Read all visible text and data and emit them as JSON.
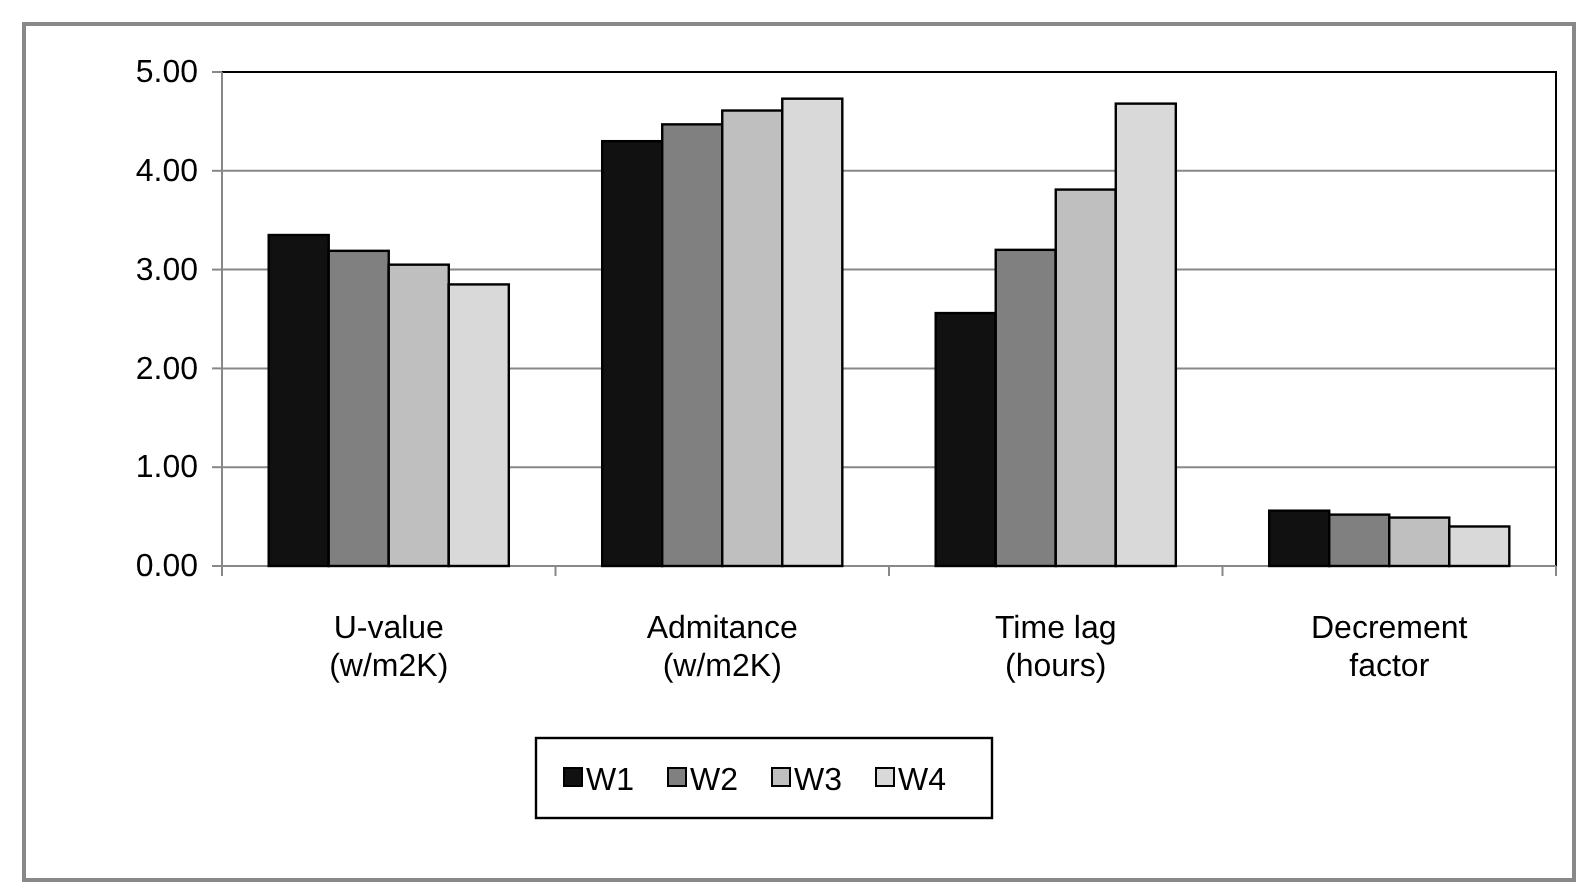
{
  "chart_data": {
    "type": "bar",
    "categories": [
      "U-value (w/m2K)",
      "Admitance (w/m2K)",
      "Time lag (hours)",
      "Decrement factor"
    ],
    "series": [
      {
        "name": "W1",
        "color": "#111111",
        "values": [
          3.35,
          4.3,
          2.56,
          0.56
        ]
      },
      {
        "name": "W2",
        "color": "#808080",
        "values": [
          3.19,
          4.47,
          3.2,
          0.52
        ]
      },
      {
        "name": "W3",
        "color": "#bfbfbf",
        "values": [
          3.05,
          4.61,
          3.81,
          0.49
        ]
      },
      {
        "name": "W4",
        "color": "#d9d9d9",
        "values": [
          2.85,
          4.73,
          4.68,
          0.4
        ]
      }
    ],
    "ylim": [
      0,
      5
    ],
    "yticks": [
      {
        "value": 0,
        "label": "0.00"
      },
      {
        "value": 1,
        "label": "1.00"
      },
      {
        "value": 2,
        "label": "2.00"
      },
      {
        "value": 3,
        "label": "3.00"
      },
      {
        "value": 4,
        "label": "4.00"
      },
      {
        "value": 5,
        "label": "5.00"
      }
    ],
    "grid": "y",
    "legend": "bottom"
  }
}
